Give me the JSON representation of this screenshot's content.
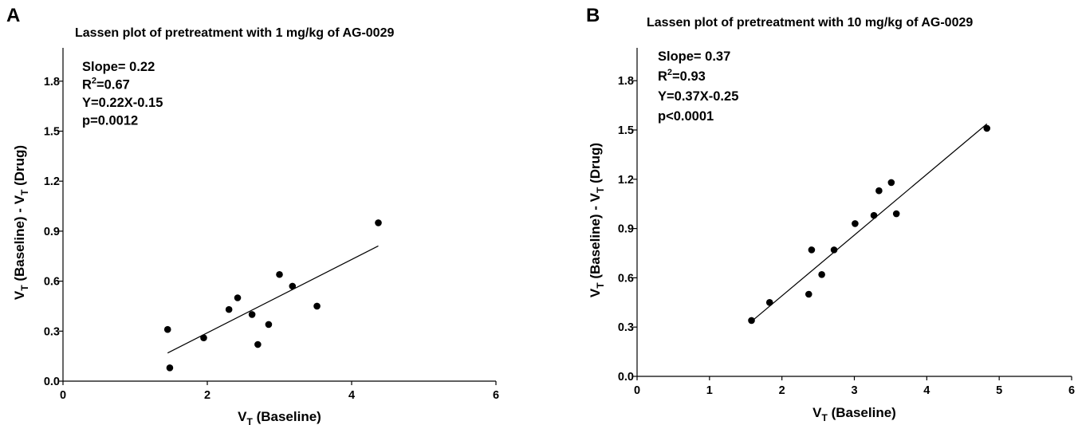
{
  "chart_data": [
    {
      "type": "scatter",
      "panel": "A",
      "title": "Lassen plot of pretreatment with 1 mg/kg of AG-0029",
      "xlabel": {
        "main": "V",
        "sub": "T",
        "rest": " (Baseline)"
      },
      "ylabel": {
        "p1": "V",
        "s1": "T",
        "p2": " (Baseline) - V",
        "s2": "T",
        "p3": " (Drug)"
      },
      "xlim": [
        0,
        6
      ],
      "ylim": [
        0,
        2.0
      ],
      "xticks": [
        "0",
        "2",
        "4",
        "6"
      ],
      "yticks": [
        "0.0",
        "0.3",
        "0.6",
        "0.9",
        "1.2",
        "1.5",
        "1.8"
      ],
      "annotations": {
        "slope": "Slope= 0.22",
        "r2_prefix": "R",
        "r2_sup": "2",
        "r2_value": "=0.67",
        "equation": "Y=0.22X-0.15",
        "p": "p=0.0012"
      },
      "points": [
        {
          "x": 1.45,
          "y": 0.31
        },
        {
          "x": 1.48,
          "y": 0.08
        },
        {
          "x": 1.95,
          "y": 0.26
        },
        {
          "x": 2.3,
          "y": 0.43
        },
        {
          "x": 2.42,
          "y": 0.5
        },
        {
          "x": 2.62,
          "y": 0.4
        },
        {
          "x": 2.7,
          "y": 0.22
        },
        {
          "x": 2.85,
          "y": 0.34
        },
        {
          "x": 3.0,
          "y": 0.64
        },
        {
          "x": 3.18,
          "y": 0.57
        },
        {
          "x": 3.52,
          "y": 0.45
        },
        {
          "x": 4.37,
          "y": 0.95
        }
      ],
      "fit": {
        "slope": 0.22,
        "intercept": -0.15,
        "x_range": [
          1.45,
          4.37
        ]
      }
    },
    {
      "type": "scatter",
      "panel": "B",
      "title": "Lassen plot of pretreatment with 10 mg/kg of AG-0029",
      "xlabel": {
        "main": "V",
        "sub": "T",
        "rest": " (Baseline)"
      },
      "ylabel": {
        "p1": "V",
        "s1": "T",
        "p2": " (Baseline) - V",
        "s2": "T",
        "p3": " (Drug)"
      },
      "xlim": [
        0,
        6
      ],
      "ylim": [
        0,
        2.0
      ],
      "xticks": [
        "0",
        "1",
        "2",
        "3",
        "4",
        "5",
        "6"
      ],
      "yticks": [
        "0.0",
        "0.3",
        "0.6",
        "0.9",
        "1.2",
        "1.5",
        "1.8"
      ],
      "annotations": {
        "slope": "Slope= 0.37",
        "r2_prefix": "R",
        "r2_sup": "2",
        "r2_value": "=0.93",
        "equation": "Y=0.37X-0.25",
        "p": "p<0.0001"
      },
      "points": [
        {
          "x": 1.58,
          "y": 0.34
        },
        {
          "x": 1.83,
          "y": 0.45
        },
        {
          "x": 2.37,
          "y": 0.5
        },
        {
          "x": 2.41,
          "y": 0.77
        },
        {
          "x": 2.55,
          "y": 0.62
        },
        {
          "x": 2.72,
          "y": 0.77
        },
        {
          "x": 3.01,
          "y": 0.93
        },
        {
          "x": 3.27,
          "y": 0.98
        },
        {
          "x": 3.34,
          "y": 1.13
        },
        {
          "x": 3.51,
          "y": 1.18
        },
        {
          "x": 3.58,
          "y": 0.99
        },
        {
          "x": 4.83,
          "y": 1.51
        }
      ],
      "fit": {
        "slope": 0.37,
        "intercept": -0.25,
        "x_range": [
          1.58,
          4.83
        ]
      }
    }
  ]
}
